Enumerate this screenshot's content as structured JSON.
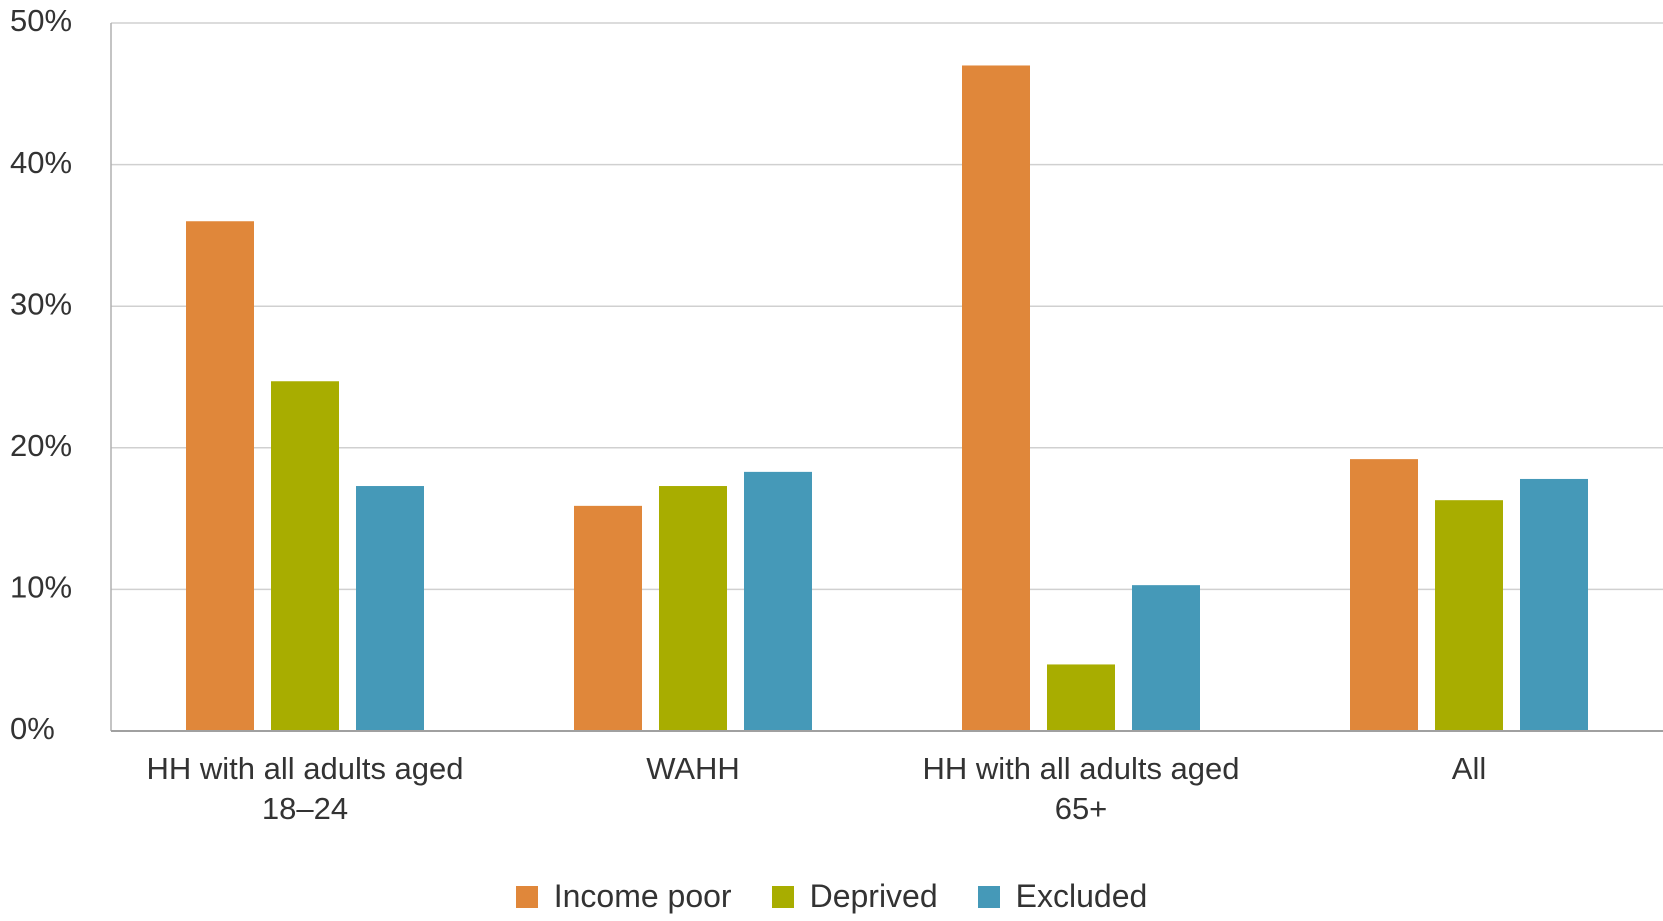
{
  "chart_data": {
    "type": "bar",
    "categories": [
      "HH with all adults aged 18–24",
      "WAHH",
      "HH with all adults aged 65+",
      "All"
    ],
    "series": [
      {
        "name": "Income poor",
        "color": "#e0873a",
        "values": [
          36,
          15.9,
          47,
          19.2
        ]
      },
      {
        "name": "Deprived",
        "color": "#a8ad00",
        "values": [
          24.7,
          17.3,
          4.7,
          16.3
        ]
      },
      {
        "name": "Excluded",
        "color": "#4599b8",
        "values": [
          17.3,
          18.3,
          10.3,
          17.8
        ]
      }
    ],
    "ylim": [
      0,
      50
    ],
    "yticks": [
      {
        "value": 0,
        "label": "0%"
      },
      {
        "value": 10,
        "label": "10%"
      },
      {
        "value": 20,
        "label": "20%"
      },
      {
        "value": 30,
        "label": "30%"
      },
      {
        "value": 40,
        "label": "40%"
      },
      {
        "value": 50,
        "label": "50%"
      }
    ],
    "grid": true,
    "legend": "bottom"
  }
}
